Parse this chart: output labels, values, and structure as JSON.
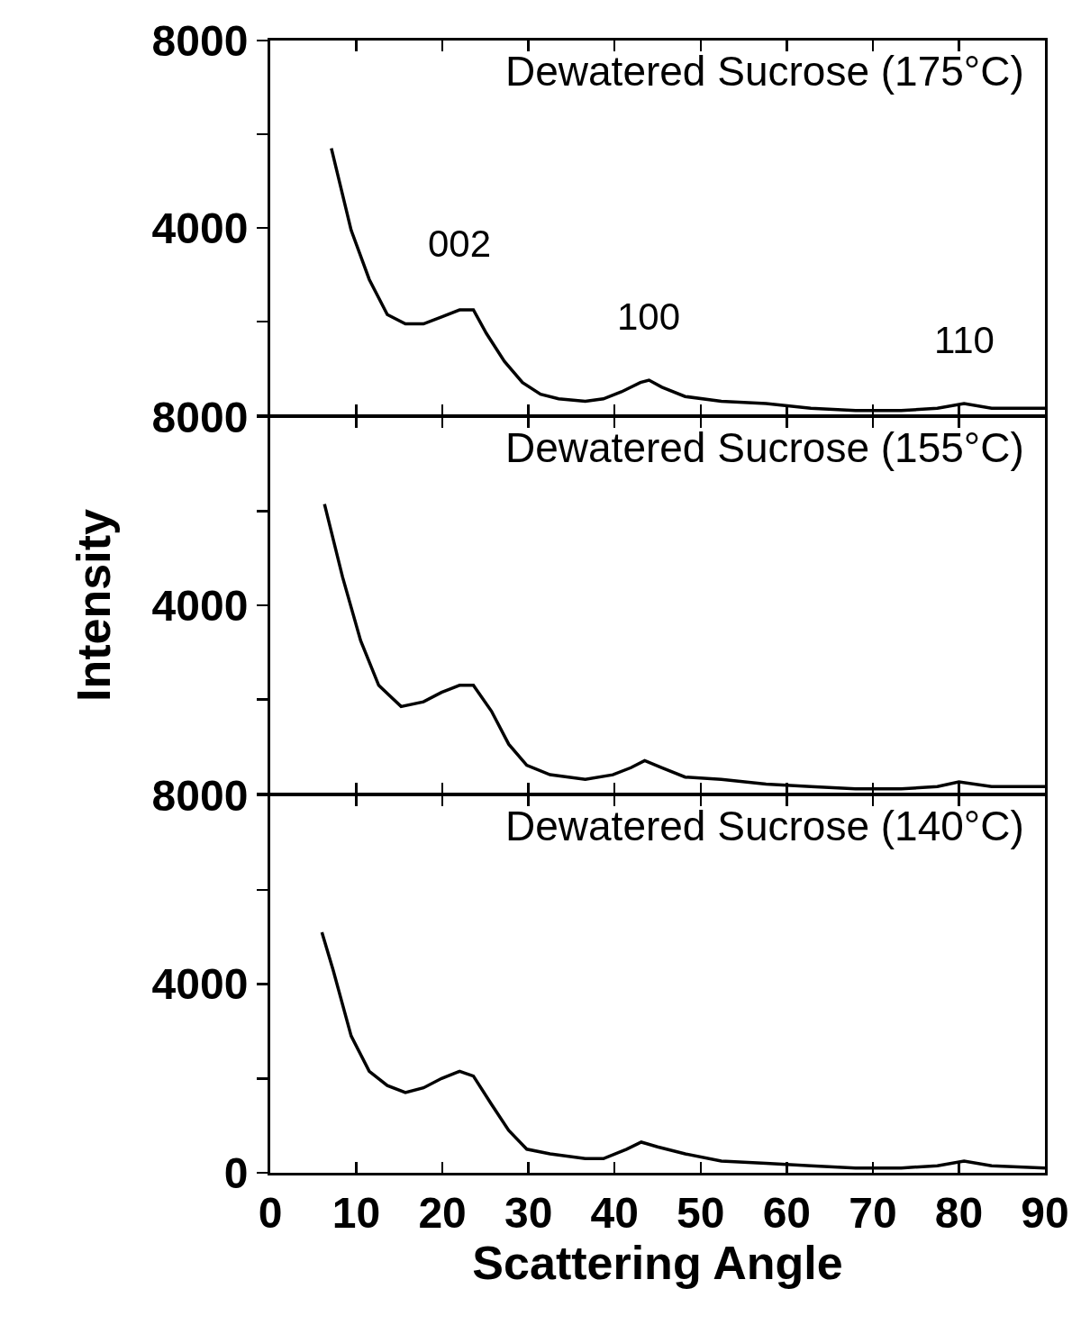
{
  "chart_data": [
    {
      "type": "line",
      "title": "Dewatered Sucrose (175°C)",
      "xlim": [
        0,
        90
      ],
      "xticks": [
        0,
        10,
        20,
        30,
        40,
        50,
        60,
        70,
        80,
        90
      ],
      "ylim": [
        0,
        8000
      ],
      "yticks": [
        {
          "value": 0,
          "label": null
        },
        {
          "value": 2000,
          "label": null
        },
        4000,
        {
          "value": 6000,
          "label": null
        },
        8000
      ],
      "tick_labels": "y",
      "grid": false,
      "marker": "none",
      "line_style": "solid",
      "annotations": [
        {
          "text": "002",
          "x": 22,
          "y": 2300
        },
        {
          "text": "100",
          "x": 44,
          "y": 750
        },
        {
          "text": "110",
          "x": 80.6,
          "y": 250
        }
      ],
      "series": [
        {
          "color": "#000000",
          "x": [
            7.1,
            9.4,
            11.5,
            13.6,
            15.7,
            17.8,
            19.9,
            22,
            23.6,
            25.1,
            27.2,
            29.3,
            31.4,
            33.5,
            36.6,
            38.7,
            40.8,
            43,
            44,
            45.5,
            48.2,
            52.4,
            57.6,
            62.8,
            68,
            73.3,
            77.5,
            80.6,
            83.8,
            90
          ],
          "values": [
            5700,
            3950,
            2900,
            2150,
            1950,
            1950,
            2100,
            2250,
            2250,
            1750,
            1150,
            700,
            450,
            350,
            300,
            350,
            500,
            700,
            750,
            600,
            400,
            300,
            250,
            150,
            100,
            100,
            150,
            250,
            150,
            150
          ]
        }
      ]
    },
    {
      "type": "line",
      "title": "Dewatered Sucrose (155°C)",
      "ylabel": "Intensity",
      "xlim": [
        0,
        90
      ],
      "xticks": [
        0,
        10,
        20,
        30,
        40,
        50,
        60,
        70,
        80,
        90
      ],
      "ylim": [
        0,
        8000
      ],
      "yticks": [
        {
          "value": 0,
          "label": null
        },
        {
          "value": 2000,
          "label": null
        },
        4000,
        {
          "value": 6000,
          "label": null
        },
        8000
      ],
      "tick_labels": "y",
      "grid": false,
      "marker": "none",
      "line_style": "solid",
      "series": [
        {
          "color": "#000000",
          "x": [
            6.3,
            8.4,
            10.5,
            12.6,
            15.2,
            17.8,
            19.9,
            22,
            23.6,
            25.7,
            27.7,
            29.8,
            32.5,
            36.6,
            39.8,
            41.9,
            43.5,
            45.5,
            48.2,
            52.4,
            57.6,
            62.8,
            68,
            73.3,
            77.5,
            80,
            83.8,
            90
          ],
          "values": [
            6150,
            4600,
            3250,
            2300,
            1850,
            1950,
            2150,
            2300,
            2300,
            1750,
            1050,
            600,
            400,
            300,
            400,
            550,
            700,
            550,
            350,
            300,
            200,
            150,
            100,
            100,
            150,
            250,
            150,
            150
          ]
        }
      ]
    },
    {
      "type": "line",
      "title": "Dewatered Sucrose (140°C)",
      "xlabel": "Scattering Angle",
      "xlim": [
        0,
        90
      ],
      "xticks": [
        0,
        10,
        20,
        30,
        40,
        50,
        60,
        70,
        80,
        90
      ],
      "ylim": [
        0,
        8000
      ],
      "yticks": [
        0,
        {
          "value": 2000,
          "label": null
        },
        4000,
        {
          "value": 6000,
          "label": null
        },
        8000
      ],
      "grid": false,
      "marker": "none",
      "line_style": "solid",
      "series": [
        {
          "color": "#000000",
          "x": [
            6,
            7.3,
            9.4,
            11.5,
            13.6,
            15.7,
            17.8,
            19.9,
            22,
            23.6,
            25.7,
            27.7,
            29.8,
            32.5,
            36.6,
            38.7,
            41.4,
            43.1,
            45,
            48.2,
            52.4,
            57.6,
            62.8,
            68,
            73.3,
            77.5,
            80.6,
            83.8,
            90
          ],
          "values": [
            5100,
            4300,
            2900,
            2150,
            1850,
            1700,
            1800,
            2000,
            2150,
            2050,
            1450,
            900,
            500,
            400,
            300,
            300,
            500,
            650,
            550,
            400,
            250,
            200,
            150,
            100,
            100,
            150,
            250,
            150,
            100
          ]
        }
      ]
    }
  ]
}
